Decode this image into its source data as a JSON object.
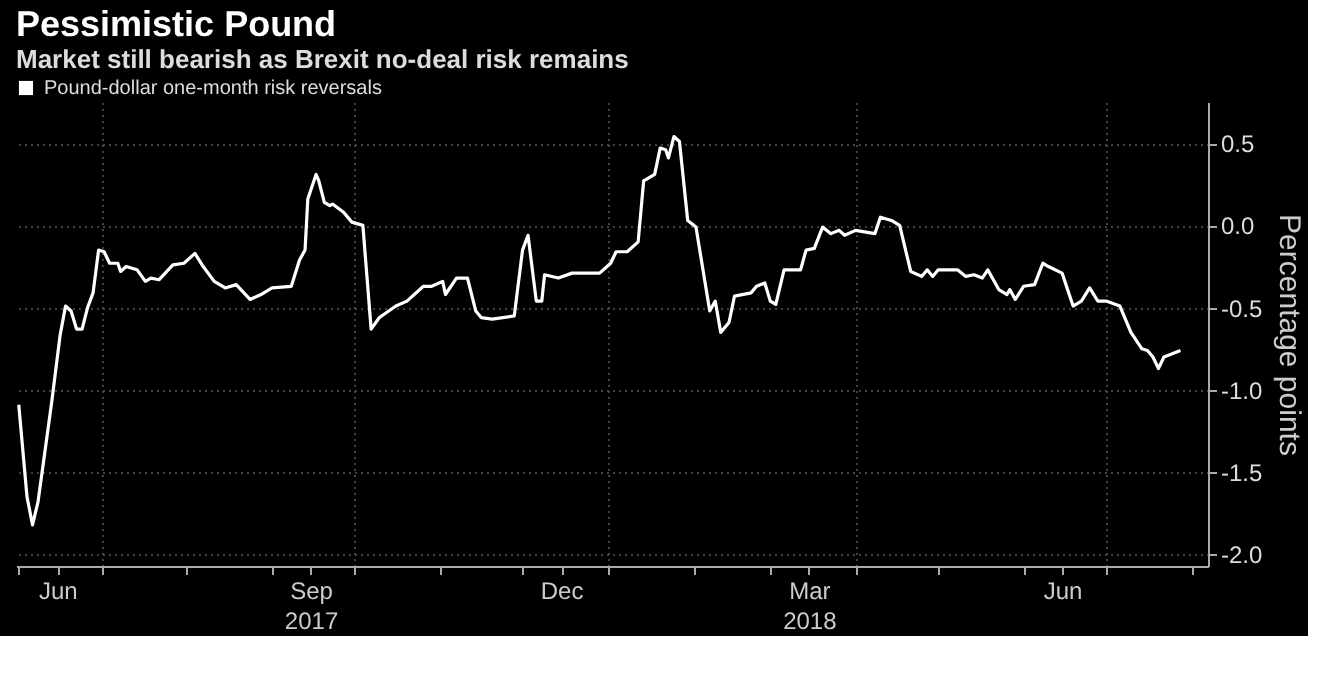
{
  "chart_data": {
    "type": "line",
    "title": "Pessimistic Pound",
    "subtitle": "Market still bearish as Brexit no-deal risk remains",
    "ylabel": "Percentage points",
    "series": [
      {
        "name": "Pound-dollar one-month risk reversals",
        "color": "#ffffff",
        "x": [
          "2017-06-01",
          "2017-06-04",
          "2017-06-06",
          "2017-06-08",
          "2017-06-13",
          "2017-06-16",
          "2017-06-18",
          "2017-06-20",
          "2017-06-22",
          "2017-06-24",
          "2017-06-26",
          "2017-06-28",
          "2017-06-30",
          "2017-07-02",
          "2017-07-04",
          "2017-07-07",
          "2017-07-08",
          "2017-07-10",
          "2017-07-14",
          "2017-07-17",
          "2017-07-19",
          "2017-07-22",
          "2017-07-27",
          "2017-07-31",
          "2017-08-04",
          "2017-08-07",
          "2017-08-11",
          "2017-08-15",
          "2017-08-19",
          "2017-08-24",
          "2017-08-28",
          "2017-09-01",
          "2017-09-08",
          "2017-09-11",
          "2017-09-13",
          "2017-09-14",
          "2017-09-17",
          "2017-09-18",
          "2017-09-20",
          "2017-09-22",
          "2017-09-23",
          "2017-09-27",
          "2017-09-30",
          "2017-10-04",
          "2017-10-07",
          "2017-10-10",
          "2017-10-16",
          "2017-10-20",
          "2017-10-26",
          "2017-10-29",
          "2017-11-02",
          "2017-11-03",
          "2017-11-07",
          "2017-11-11",
          "2017-11-14",
          "2017-11-16",
          "2017-11-20",
          "2017-11-28",
          "2017-12-01",
          "2017-12-03",
          "2017-12-06",
          "2017-12-08",
          "2017-12-09",
          "2017-12-14",
          "2017-12-19",
          "2017-12-29",
          "2018-01-02",
          "2018-01-04",
          "2018-01-08",
          "2018-01-12",
          "2018-01-14",
          "2018-01-18",
          "2018-01-20",
          "2018-01-22",
          "2018-01-23",
          "2018-01-25",
          "2018-01-27",
          "2018-01-30",
          "2018-02-02",
          "2018-02-07",
          "2018-02-09",
          "2018-02-11",
          "2018-02-14",
          "2018-02-16",
          "2018-02-22",
          "2018-02-24",
          "2018-02-27",
          "2018-03-01",
          "2018-03-03",
          "2018-03-06",
          "2018-03-12",
          "2018-03-14",
          "2018-03-17",
          "2018-03-20",
          "2018-03-23",
          "2018-03-26",
          "2018-03-28",
          "2018-04-01",
          "2018-04-08",
          "2018-04-10",
          "2018-04-14",
          "2018-04-17",
          "2018-04-21",
          "2018-04-25",
          "2018-04-27",
          "2018-04-29",
          "2018-05-01",
          "2018-05-08",
          "2018-05-11",
          "2018-05-14",
          "2018-05-17",
          "2018-05-19",
          "2018-05-23",
          "2018-05-26",
          "2018-05-27",
          "2018-05-29",
          "2018-06-01",
          "2018-06-05",
          "2018-06-08",
          "2018-06-10",
          "2018-06-15",
          "2018-06-19",
          "2018-06-22",
          "2018-06-25",
          "2018-06-28",
          "2018-07-01",
          "2018-07-06",
          "2018-07-10",
          "2018-07-14",
          "2018-07-16",
          "2018-07-18",
          "2018-07-20",
          "2018-07-22",
          "2018-07-25",
          "2018-07-28"
        ],
        "values": [
          -1.09,
          -1.65,
          -1.82,
          -1.68,
          -1.07,
          -0.67,
          -0.49,
          -0.52,
          -0.63,
          -0.63,
          -0.5,
          -0.41,
          -0.15,
          -0.16,
          -0.23,
          -0.23,
          -0.28,
          -0.25,
          -0.27,
          -0.34,
          -0.32,
          -0.33,
          -0.24,
          -0.23,
          -0.17,
          -0.25,
          -0.34,
          -0.38,
          -0.36,
          -0.45,
          -0.42,
          -0.38,
          -0.37,
          -0.21,
          -0.15,
          0.16,
          0.31,
          0.27,
          0.14,
          0.12,
          0.13,
          0.08,
          0.02,
          0.0,
          -0.63,
          -0.56,
          -0.49,
          -0.46,
          -0.37,
          -0.37,
          -0.34,
          -0.42,
          -0.32,
          -0.32,
          -0.52,
          -0.56,
          -0.57,
          -0.55,
          -0.15,
          -0.06,
          -0.46,
          -0.46,
          -0.3,
          -0.32,
          -0.29,
          -0.29,
          -0.23,
          -0.16,
          -0.16,
          -0.1,
          0.27,
          0.31,
          0.47,
          0.46,
          0.41,
          0.54,
          0.51,
          0.03,
          -0.01,
          -0.52,
          -0.46,
          -0.65,
          -0.59,
          -0.43,
          -0.41,
          -0.37,
          -0.35,
          -0.46,
          -0.48,
          -0.27,
          -0.27,
          -0.15,
          -0.14,
          -0.01,
          -0.05,
          -0.03,
          -0.06,
          -0.03,
          -0.05,
          0.05,
          0.03,
          0.0,
          -0.28,
          -0.31,
          -0.27,
          -0.31,
          -0.27,
          -0.27,
          -0.31,
          -0.3,
          -0.32,
          -0.27,
          -0.39,
          -0.42,
          -0.39,
          -0.45,
          -0.37,
          -0.36,
          -0.23,
          -0.25,
          -0.29,
          -0.49,
          -0.46,
          -0.38,
          -0.46,
          -0.46,
          -0.49,
          -0.65,
          -0.75,
          -0.76,
          -0.8,
          -0.87,
          -0.8,
          -0.78,
          -0.76
        ]
      }
    ],
    "xlim": [
      "2017-05-31",
      "2018-08-07"
    ],
    "xticks": [
      {
        "value": "2017-06-01",
        "label": null
      },
      {
        "value": "2017-06-15",
        "label": "Jun"
      },
      {
        "value": "2017-07-01",
        "label": null
      },
      {
        "value": "2017-08-01",
        "label": null
      },
      {
        "value": "2017-09-01",
        "label": null
      },
      {
        "value": "2017-09-15",
        "label": "Sep\n2017"
      },
      {
        "value": "2017-10-01",
        "label": null
      },
      {
        "value": "2017-11-01",
        "label": null
      },
      {
        "value": "2017-12-01",
        "label": null
      },
      {
        "value": "2017-12-15",
        "label": "Dec"
      },
      {
        "value": "2018-01-01",
        "label": null
      },
      {
        "value": "2018-02-01",
        "label": null
      },
      {
        "value": "2018-03-01",
        "label": null
      },
      {
        "value": "2018-03-15",
        "label": "Mar\n2018"
      },
      {
        "value": "2018-04-01",
        "label": null
      },
      {
        "value": "2018-05-01",
        "label": null
      },
      {
        "value": "2018-06-01",
        "label": null
      },
      {
        "value": "2018-06-15",
        "label": "Jun"
      },
      {
        "value": "2018-07-01",
        "label": null
      },
      {
        "value": "2018-08-01",
        "label": null
      }
    ],
    "ylim": [
      -2.07,
      0.75
    ],
    "yticks": [
      {
        "value": 0.5,
        "label": "0.5"
      },
      {
        "value": 0.0,
        "label": "0.0"
      },
      {
        "value": -0.5,
        "label": "-0.5"
      },
      {
        "value": -1.0,
        "label": "-1.0"
      },
      {
        "value": -1.5,
        "label": "-1.5"
      },
      {
        "value": -2.0,
        "label": "-2.0"
      }
    ],
    "grid": true,
    "legend": "top left",
    "line_style": "solid",
    "marker": "none"
  }
}
